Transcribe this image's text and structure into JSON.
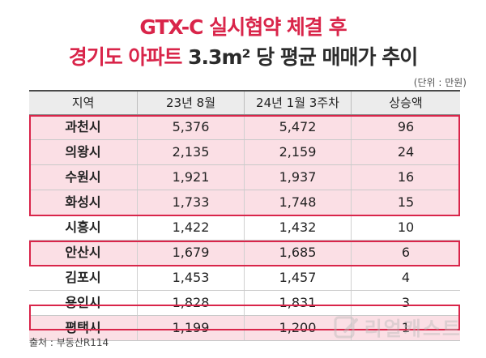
{
  "title": {
    "line1": "GTX-C 실시협약 체결 후",
    "line2_part1": "경기도 아파트",
    "line2_part2": "3.3m² 당 평균 매매가 추이"
  },
  "unit": "(단위 : 만원)",
  "table": {
    "headers": [
      "지역",
      "23년 8월",
      "24년 1월 3주차",
      "상승액"
    ],
    "rows": [
      {
        "region": "과천시",
        "aug23": "5,376",
        "jan24": "5,472",
        "increase": "96",
        "highlight": true
      },
      {
        "region": "의왕시",
        "aug23": "2,135",
        "jan24": "2,159",
        "increase": "24",
        "highlight": true
      },
      {
        "region": "수원시",
        "aug23": "1,921",
        "jan24": "1,937",
        "increase": "16",
        "highlight": true
      },
      {
        "region": "화성시",
        "aug23": "1,733",
        "jan24": "1,748",
        "increase": "15",
        "highlight": true
      },
      {
        "region": "시흥시",
        "aug23": "1,422",
        "jan24": "1,432",
        "increase": "10",
        "highlight": false
      },
      {
        "region": "안산시",
        "aug23": "1,679",
        "jan24": "1,685",
        "increase": "6",
        "highlight": true
      },
      {
        "region": "김포시",
        "aug23": "1,453",
        "jan24": "1,457",
        "increase": "4",
        "highlight": false
      },
      {
        "region": "용인시",
        "aug23": "1,828",
        "jan24": "1,831",
        "increase": "3",
        "highlight": false
      },
      {
        "region": "평택시",
        "aug23": "1,199",
        "jan24": "1,200",
        "increase": "1",
        "highlight": true
      }
    ]
  },
  "source": "출처 : 부동산R114",
  "watermark": "리얼캐스트",
  "colors": {
    "accent": "#d9254a",
    "highlight_bg": "#fbdfe5",
    "header_bg": "#ececec"
  }
}
